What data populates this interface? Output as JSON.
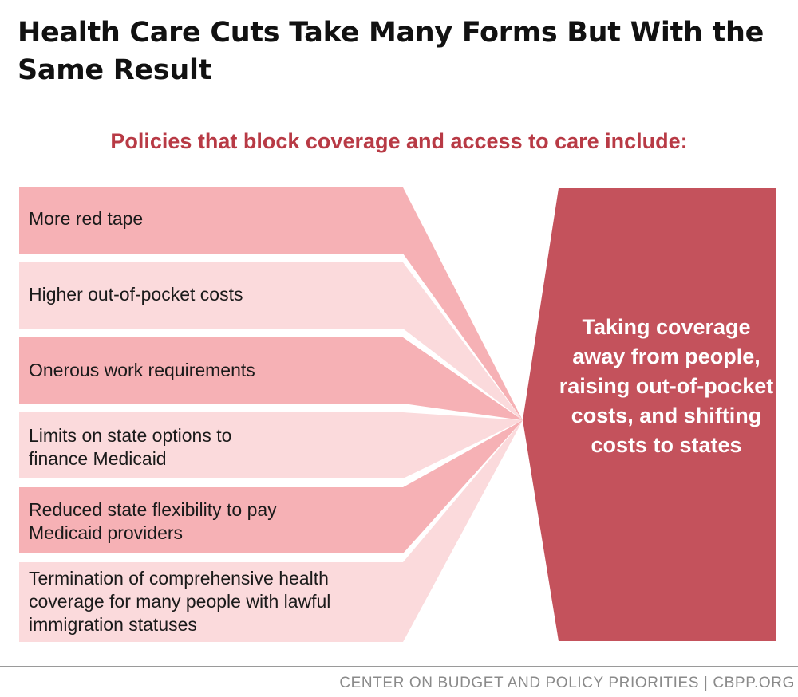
{
  "title": "Health Care Cuts Take Many Forms But With the Same Result",
  "subtitle": "Policies that block coverage and access to care include:",
  "policies": [
    "More red tape",
    "Higher out-of-pocket costs",
    "Onerous work requirements",
    "Limits on state options to finance Medicaid",
    "Reduced state flexibility to pay Medicaid providers",
    "Termination of comprehensive health coverage for many people with lawful immigration statuses"
  ],
  "result": "Taking coverage away from people, raising out-of-pocket costs, and shifting costs to states",
  "source": "CENTER ON BUDGET AND POLICY PRIORITIES | CBPP.ORG",
  "colors": {
    "band_dark": "#f6b1b5",
    "band_light": "#fbdadc",
    "result_box": "#c4525c",
    "subtitle": "#b83a45"
  }
}
